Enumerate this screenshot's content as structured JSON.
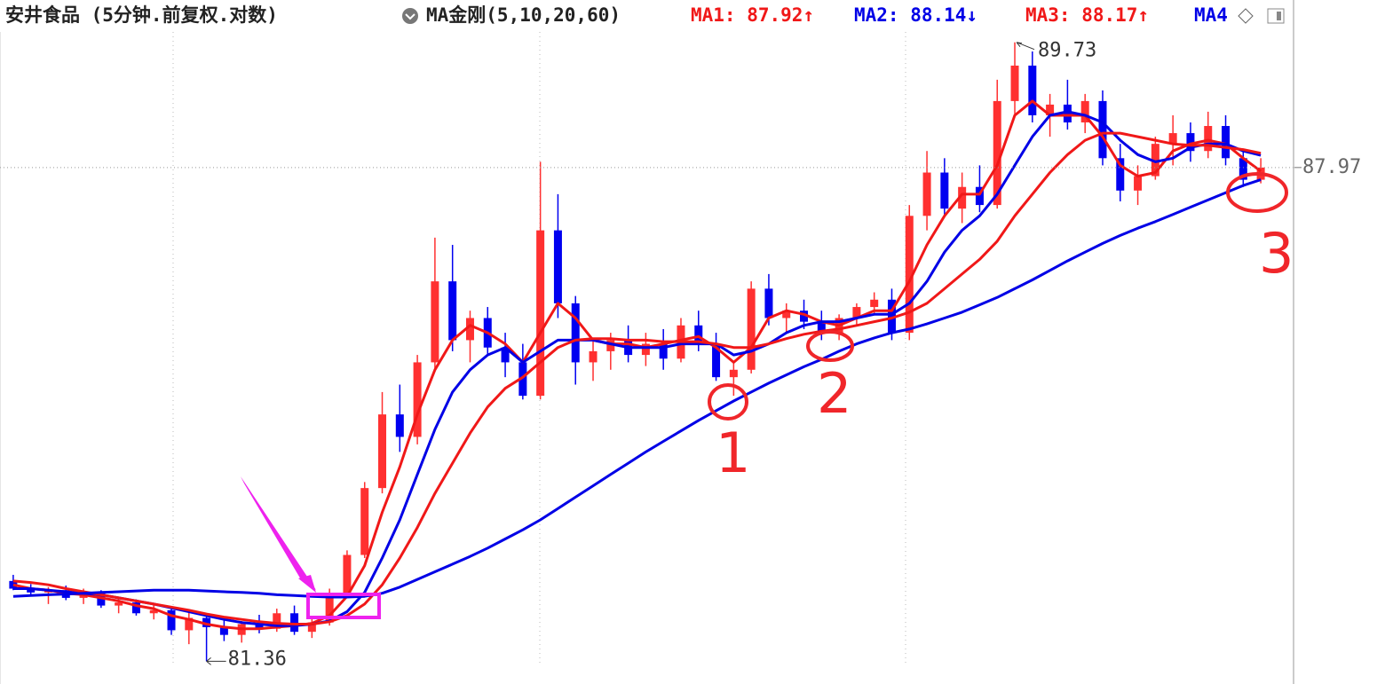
{
  "chart_data": {
    "type": "candlestick",
    "title": "安井食品 (5分钟.前复权.对数)",
    "indicator": "MA金刚(5,10,20,60)",
    "log_scale": true,
    "ylim": [
      81.25,
      89.89
    ],
    "up_color": "#ff3030",
    "down_color": "#0000f0",
    "open": [
      82.4,
      82.3,
      82.25,
      82.28,
      82.18,
      82.24,
      82.08,
      82.12,
      81.98,
      82.02,
      81.76,
      81.92,
      81.8,
      81.7,
      81.84,
      81.78,
      81.98,
      81.74,
      81.86,
      82.24,
      82.74,
      83.62,
      84.6,
      84.3,
      85.3,
      86.4,
      85.6,
      85.9,
      85.5,
      85.3,
      84.85,
      87.1,
      86.1,
      85.3,
      85.45,
      85.6,
      85.4,
      85.55,
      85.35,
      85.8,
      85.55,
      85.1,
      85.2,
      86.3,
      85.9,
      86.0,
      85.85,
      85.7,
      85.9,
      86.05,
      86.15,
      85.7,
      87.3,
      87.9,
      87.4,
      87.7,
      87.45,
      88.9,
      89.4,
      88.7,
      88.85,
      88.6,
      88.9,
      88.1,
      87.65,
      87.85,
      88.3,
      88.45,
      88.2,
      88.55,
      88.1,
      87.8
    ],
    "high": [
      82.48,
      82.36,
      82.32,
      82.34,
      82.3,
      82.28,
      82.18,
      82.16,
      82.1,
      82.06,
      82.0,
      81.95,
      81.9,
      81.88,
      81.96,
      82.04,
      82.08,
      81.92,
      82.3,
      82.8,
      83.7,
      84.9,
      85.0,
      85.4,
      87.0,
      86.9,
      86.0,
      86.05,
      85.7,
      85.55,
      88.05,
      87.6,
      86.2,
      85.6,
      85.7,
      85.8,
      85.7,
      85.75,
      85.9,
      86.0,
      85.7,
      85.3,
      86.4,
      86.5,
      86.1,
      86.15,
      86.0,
      85.95,
      86.1,
      86.25,
      86.3,
      87.45,
      88.2,
      88.1,
      87.9,
      88.0,
      89.2,
      89.73,
      89.6,
      89.0,
      89.2,
      89.0,
      89.05,
      88.3,
      88.0,
      88.4,
      88.7,
      88.6,
      88.75,
      88.7,
      88.2,
      88.1
    ],
    "low": [
      82.28,
      82.2,
      82.1,
      82.15,
      82.1,
      82.05,
      81.98,
      81.95,
      81.9,
      81.7,
      81.58,
      81.36,
      81.62,
      81.6,
      81.72,
      81.74,
      81.7,
      81.66,
      81.82,
      82.2,
      82.7,
      83.55,
      84.1,
      84.2,
      85.2,
      85.45,
      85.3,
      85.4,
      85.1,
      84.8,
      84.8,
      85.9,
      85.0,
      85.05,
      85.2,
      85.3,
      85.25,
      85.2,
      85.3,
      85.45,
      85.05,
      84.85,
      85.15,
      85.8,
      85.7,
      85.75,
      85.6,
      85.6,
      85.8,
      85.95,
      85.6,
      85.6,
      87.1,
      87.3,
      87.2,
      87.35,
      87.4,
      88.7,
      88.6,
      88.4,
      88.5,
      88.45,
      88.0,
      87.5,
      87.45,
      87.8,
      88.0,
      88.05,
      88.1,
      88.0,
      87.7,
      87.75
    ],
    "close": [
      82.3,
      82.25,
      82.28,
      82.18,
      82.24,
      82.08,
      82.12,
      81.98,
      82.02,
      81.76,
      81.92,
      81.8,
      81.7,
      81.84,
      81.78,
      81.98,
      81.74,
      81.86,
      82.24,
      82.74,
      83.62,
      84.6,
      84.3,
      85.3,
      86.4,
      85.6,
      85.9,
      85.5,
      85.3,
      84.85,
      87.1,
      86.1,
      85.3,
      85.45,
      85.6,
      85.4,
      85.55,
      85.35,
      85.8,
      85.55,
      85.1,
      85.2,
      86.3,
      85.9,
      86.0,
      85.85,
      85.7,
      85.9,
      86.05,
      86.15,
      85.7,
      87.3,
      87.9,
      87.4,
      87.7,
      87.45,
      88.9,
      89.4,
      88.7,
      88.85,
      88.6,
      88.9,
      88.1,
      87.65,
      87.85,
      88.3,
      88.45,
      88.2,
      88.55,
      88.1,
      87.8,
      87.97
    ],
    "series": [
      {
        "name": "MA1: 87.92↑",
        "color": "#f01818",
        "values": [
          82.35,
          82.3,
          82.28,
          82.24,
          82.22,
          82.18,
          82.14,
          82.08,
          82.04,
          81.95,
          81.9,
          81.84,
          81.8,
          81.78,
          81.78,
          81.8,
          81.82,
          81.85,
          81.95,
          82.2,
          82.6,
          83.3,
          83.9,
          84.6,
          85.2,
          85.6,
          85.8,
          85.7,
          85.55,
          85.3,
          85.7,
          86.1,
          85.9,
          85.6,
          85.55,
          85.55,
          85.5,
          85.55,
          85.6,
          85.65,
          85.5,
          85.3,
          85.5,
          85.9,
          86.0,
          85.95,
          85.85,
          85.8,
          85.9,
          86.0,
          86.0,
          86.4,
          86.9,
          87.3,
          87.6,
          87.6,
          88.0,
          88.7,
          88.9,
          88.7,
          88.7,
          88.7,
          88.4,
          88.0,
          87.85,
          87.9,
          88.2,
          88.3,
          88.35,
          88.3,
          88.1,
          87.92
        ]
      },
      {
        "name": "MA2: 88.14↓",
        "color": "#0000e6",
        "values": [
          82.3,
          82.3,
          82.28,
          82.26,
          82.24,
          82.22,
          82.18,
          82.14,
          82.1,
          82.05,
          82.0,
          81.95,
          81.9,
          81.86,
          81.84,
          81.82,
          81.82,
          81.84,
          81.88,
          82.0,
          82.25,
          82.7,
          83.2,
          83.8,
          84.4,
          84.9,
          85.2,
          85.4,
          85.5,
          85.3,
          85.45,
          85.6,
          85.6,
          85.6,
          85.55,
          85.5,
          85.5,
          85.5,
          85.55,
          85.55,
          85.55,
          85.4,
          85.45,
          85.55,
          85.7,
          85.8,
          85.85,
          85.85,
          85.9,
          85.95,
          85.95,
          86.1,
          86.4,
          86.8,
          87.1,
          87.3,
          87.6,
          88.0,
          88.4,
          88.7,
          88.75,
          88.7,
          88.6,
          88.35,
          88.15,
          88.05,
          88.1,
          88.25,
          88.3,
          88.3,
          88.2,
          88.14
        ]
      },
      {
        "name": "MA3: 88.17↑",
        "color": "#f01818",
        "values": [
          82.4,
          82.38,
          82.35,
          82.3,
          82.26,
          82.22,
          82.18,
          82.14,
          82.1,
          82.06,
          82.02,
          81.97,
          81.93,
          81.9,
          81.87,
          81.85,
          81.84,
          81.84,
          81.87,
          81.95,
          82.1,
          82.35,
          82.7,
          83.1,
          83.55,
          83.95,
          84.35,
          84.7,
          84.95,
          85.1,
          85.3,
          85.5,
          85.6,
          85.62,
          85.62,
          85.6,
          85.6,
          85.58,
          85.58,
          85.58,
          85.55,
          85.5,
          85.5,
          85.55,
          85.62,
          85.68,
          85.72,
          85.75,
          85.8,
          85.85,
          85.9,
          85.98,
          86.1,
          86.3,
          86.5,
          86.7,
          86.95,
          87.3,
          87.6,
          87.9,
          88.15,
          88.35,
          88.45,
          88.45,
          88.4,
          88.35,
          88.3,
          88.28,
          88.28,
          88.25,
          88.22,
          88.17
        ]
      },
      {
        "name": "MA4",
        "color": "#0000e6",
        "values": [
          82.2,
          82.21,
          82.22,
          82.23,
          82.24,
          82.25,
          82.26,
          82.27,
          82.28,
          82.28,
          82.28,
          82.27,
          82.26,
          82.25,
          82.24,
          82.22,
          82.21,
          82.2,
          82.19,
          82.19,
          82.2,
          82.24,
          82.32,
          82.42,
          82.52,
          82.62,
          82.72,
          82.83,
          82.95,
          83.07,
          83.2,
          83.35,
          83.5,
          83.65,
          83.8,
          83.95,
          84.1,
          84.24,
          84.38,
          84.52,
          84.65,
          84.78,
          84.9,
          85.02,
          85.13,
          85.24,
          85.34,
          85.45,
          85.55,
          85.63,
          85.7,
          85.75,
          85.82,
          85.9,
          85.98,
          86.08,
          86.18,
          86.3,
          86.42,
          86.55,
          86.68,
          86.8,
          86.92,
          87.03,
          87.13,
          87.22,
          87.32,
          87.42,
          87.52,
          87.62,
          87.72,
          87.8
        ]
      }
    ],
    "max_label": 89.73,
    "min_label": 81.36,
    "last_price": 87.97,
    "annotations": [
      "1",
      "2",
      "3"
    ]
  }
}
